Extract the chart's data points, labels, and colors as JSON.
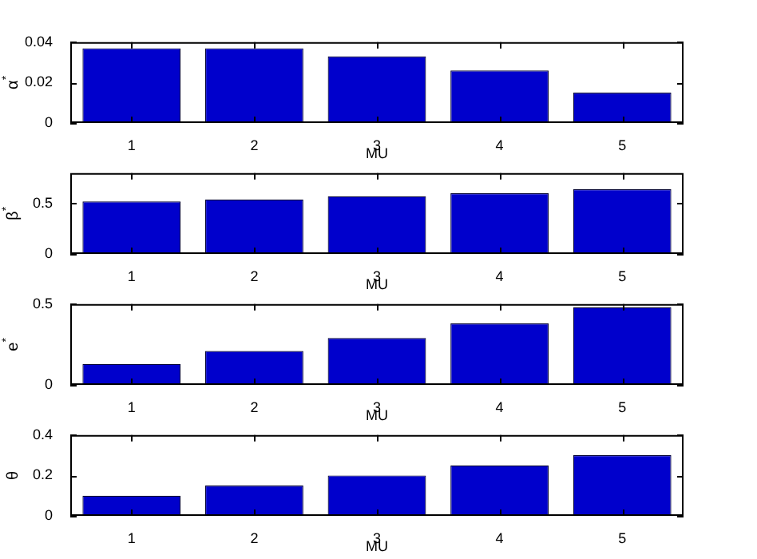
{
  "chart_data": [
    {
      "type": "bar",
      "categories": [
        "1",
        "2",
        "3",
        "4",
        "5"
      ],
      "values": [
        0.037,
        0.037,
        0.033,
        0.026,
        0.015
      ],
      "color": "#0000cc",
      "xlabel": "MU",
      "ylabel": "α$^{*}$",
      "ylim": [
        0,
        0.04
      ],
      "yticks": [
        0,
        0.02,
        0.04
      ],
      "grid": false
    },
    {
      "type": "bar",
      "categories": [
        "1",
        "2",
        "3",
        "4",
        "5"
      ],
      "values": [
        0.52,
        0.54,
        0.57,
        0.6,
        0.64
      ],
      "color": "#0000cc",
      "xlabel": "MU",
      "ylabel": "β$^{*}$",
      "ylim": [
        0,
        0.8
      ],
      "yticks": [
        0,
        0.5
      ],
      "grid": false
    },
    {
      "type": "bar",
      "categories": [
        "1",
        "2",
        "3",
        "4",
        "5"
      ],
      "values": [
        0.13,
        0.21,
        0.29,
        0.38,
        0.48
      ],
      "color": "#0000cc",
      "xlabel": "MU",
      "ylabel": "e$^{*}$",
      "ylim": [
        0,
        0.5
      ],
      "yticks": [
        0,
        0.5
      ],
      "grid": false
    },
    {
      "type": "bar",
      "categories": [
        "1",
        "2",
        "3",
        "4",
        "5"
      ],
      "values": [
        0.1,
        0.15,
        0.2,
        0.25,
        0.3
      ],
      "color": "#0000cc",
      "xlabel": "MU",
      "ylabel": "θ",
      "ylim": [
        0,
        0.4
      ],
      "yticks": [
        0,
        0.2,
        0.4
      ],
      "grid": false
    }
  ]
}
